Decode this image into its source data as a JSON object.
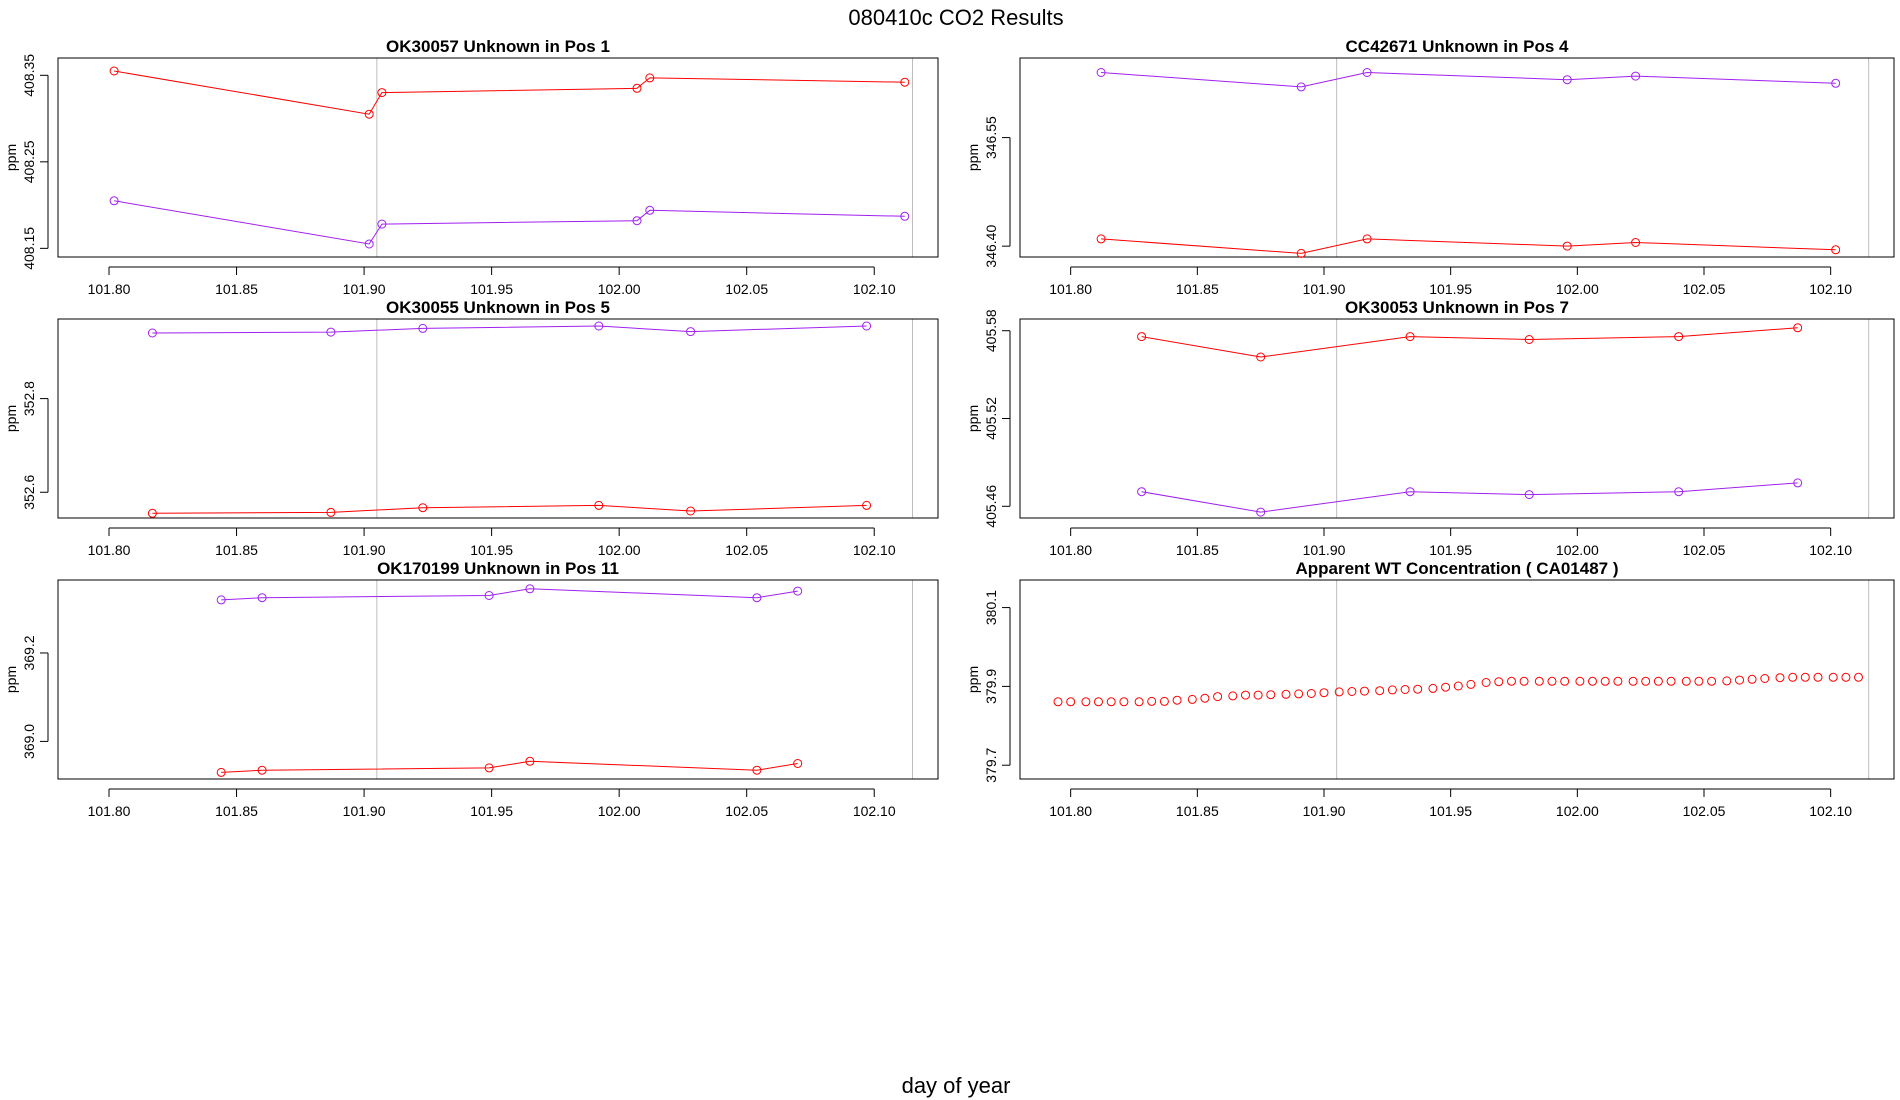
{
  "figure": {
    "title": "080410c  CO2 Results",
    "xlabel": "day of year"
  },
  "colors": {
    "red": "#ff0000",
    "purple": "#a020f0",
    "marker": "#bebebe",
    "axis": "#000000"
  },
  "chart_data": [
    {
      "type": "line",
      "title": "OK30057    Unknown in Pos 1",
      "xlabel": "day of year",
      "ylabel": "ppm",
      "xlim": [
        101.78,
        102.125
      ],
      "ylim": [
        408.14,
        408.37
      ],
      "xticks": [
        "101.80",
        "101.85",
        "101.90",
        "101.95",
        "102.00",
        "102.05",
        "102.10"
      ],
      "yticks": [
        "408.15",
        "408.25",
        "408.35"
      ],
      "vlines": [
        101.905,
        102.115
      ],
      "series": [
        {
          "name": "red",
          "color": "#ff0000",
          "lines": true,
          "x": [
            101.802,
            101.902,
            101.907,
            102.007,
            102.012,
            102.112
          ],
          "y": [
            408.355,
            408.305,
            408.33,
            408.335,
            408.347,
            408.342
          ]
        },
        {
          "name": "purple",
          "color": "#a020f0",
          "lines": true,
          "x": [
            101.802,
            101.902,
            101.907,
            102.007,
            102.012,
            102.112
          ],
          "y": [
            408.205,
            408.155,
            408.178,
            408.182,
            408.194,
            408.187
          ]
        }
      ]
    },
    {
      "type": "line",
      "title": "CC42671    Unknown in Pos 4",
      "xlabel": "day of year",
      "ylabel": "ppm",
      "xlim": [
        101.78,
        102.125
      ],
      "ylim": [
        346.385,
        346.66
      ],
      "xticks": [
        "101.80",
        "101.85",
        "101.90",
        "101.95",
        "102.00",
        "102.05",
        "102.10"
      ],
      "yticks": [
        "346.40",
        "346.55"
      ],
      "vlines": [
        101.905,
        102.115
      ],
      "series": [
        {
          "name": "purple",
          "color": "#a020f0",
          "lines": true,
          "x": [
            101.812,
            101.891,
            101.917,
            101.996,
            102.023,
            102.102
          ],
          "y": [
            346.64,
            346.62,
            346.64,
            346.63,
            346.635,
            346.625
          ]
        },
        {
          "name": "red",
          "color": "#ff0000",
          "lines": true,
          "x": [
            101.812,
            101.891,
            101.917,
            101.996,
            102.023,
            102.102
          ],
          "y": [
            346.41,
            346.39,
            346.41,
            346.4,
            346.405,
            346.395
          ]
        }
      ]
    },
    {
      "type": "line",
      "title": "OK30055    Unknown in Pos 5",
      "xlabel": "day of year",
      "ylabel": "ppm",
      "xlim": [
        101.78,
        102.125
      ],
      "ylim": [
        352.545,
        352.97
      ],
      "xticks": [
        "101.80",
        "101.85",
        "101.90",
        "101.95",
        "102.00",
        "102.05",
        "102.10"
      ],
      "yticks": [
        "352.6",
        "352.8"
      ],
      "vlines": [
        101.905,
        102.115
      ],
      "series": [
        {
          "name": "purple",
          "color": "#a020f0",
          "lines": true,
          "x": [
            101.817,
            101.887,
            101.923,
            101.992,
            102.028,
            102.097
          ],
          "y": [
            352.94,
            352.942,
            352.95,
            352.955,
            352.943,
            352.955
          ]
        },
        {
          "name": "red",
          "color": "#ff0000",
          "lines": true,
          "x": [
            101.817,
            101.887,
            101.923,
            101.992,
            102.028,
            102.097
          ],
          "y": [
            352.555,
            352.557,
            352.567,
            352.572,
            352.56,
            352.572
          ]
        }
      ]
    },
    {
      "type": "line",
      "title": "OK30053    Unknown in Pos 7",
      "xlabel": "day of year",
      "ylabel": "ppm",
      "xlim": [
        101.78,
        102.125
      ],
      "ylim": [
        405.452,
        405.588
      ],
      "xticks": [
        "101.80",
        "101.85",
        "101.90",
        "101.95",
        "102.00",
        "102.05",
        "102.10"
      ],
      "yticks": [
        "405.46",
        "405.52",
        "405.58"
      ],
      "vlines": [
        101.905,
        102.115
      ],
      "series": [
        {
          "name": "red",
          "color": "#ff0000",
          "lines": true,
          "x": [
            101.828,
            101.875,
            101.934,
            101.981,
            102.04,
            102.087
          ],
          "y": [
            405.576,
            405.562,
            405.576,
            405.574,
            405.576,
            405.582
          ]
        },
        {
          "name": "purple",
          "color": "#a020f0",
          "lines": true,
          "x": [
            101.828,
            101.875,
            101.934,
            101.981,
            102.04,
            102.087
          ],
          "y": [
            405.47,
            405.456,
            405.47,
            405.468,
            405.47,
            405.476
          ]
        }
      ]
    },
    {
      "type": "line",
      "title": "OK170199    Unknown in Pos 11",
      "xlabel": "day of year",
      "ylabel": "ppm",
      "xlim": [
        101.78,
        102.125
      ],
      "ylim": [
        368.915,
        369.365
      ],
      "xticks": [
        "101.80",
        "101.85",
        "101.90",
        "101.95",
        "102.00",
        "102.05",
        "102.10"
      ],
      "yticks": [
        "369.0",
        "369.2"
      ],
      "vlines": [
        101.905,
        102.115
      ],
      "series": [
        {
          "name": "purple",
          "color": "#a020f0",
          "lines": true,
          "x": [
            101.844,
            101.86,
            101.949,
            101.965,
            102.054,
            102.07
          ],
          "y": [
            369.32,
            369.325,
            369.33,
            369.345,
            369.325,
            369.34
          ]
        },
        {
          "name": "red",
          "color": "#ff0000",
          "lines": true,
          "x": [
            101.844,
            101.86,
            101.949,
            101.965,
            102.054,
            102.07
          ],
          "y": [
            368.93,
            368.935,
            368.94,
            368.955,
            368.935,
            368.95
          ]
        }
      ]
    },
    {
      "type": "scatter",
      "title": "Apparent WT Concentration ( CA01487 )",
      "xlabel": "day of year",
      "ylabel": "ppm",
      "xlim": [
        101.78,
        102.125
      ],
      "ylim": [
        379.665,
        380.17
      ],
      "xticks": [
        "101.80",
        "101.85",
        "101.90",
        "101.95",
        "102.00",
        "102.05",
        "102.10"
      ],
      "yticks": [
        "379.7",
        "379.9",
        "380.1"
      ],
      "vlines": [
        101.905,
        102.115
      ],
      "series": [
        {
          "name": "red",
          "color": "#ff0000",
          "lines": false,
          "x": [
            101.795,
            101.8,
            101.806,
            101.811,
            101.816,
            101.821,
            101.827,
            101.832,
            101.837,
            101.842,
            101.848,
            101.853,
            101.858,
            101.864,
            101.869,
            101.874,
            101.879,
            101.885,
            101.89,
            101.895,
            101.9,
            101.906,
            101.911,
            101.916,
            101.922,
            101.927,
            101.932,
            101.937,
            101.943,
            101.948,
            101.953,
            101.958,
            101.964,
            101.969,
            101.974,
            101.979,
            101.985,
            101.99,
            101.995,
            102.001,
            102.006,
            102.011,
            102.016,
            102.022,
            102.027,
            102.032,
            102.037,
            102.043,
            102.048,
            102.053,
            102.059,
            102.064,
            102.069,
            102.074,
            102.08,
            102.085,
            102.09,
            102.095,
            102.101,
            102.106,
            102.111
          ],
          "y": [
            379.861,
            379.861,
            379.861,
            379.861,
            379.861,
            379.861,
            379.861,
            379.862,
            379.862,
            379.865,
            379.867,
            379.87,
            379.874,
            379.876,
            379.878,
            379.878,
            379.879,
            379.88,
            379.881,
            379.882,
            379.884,
            379.886,
            379.887,
            379.888,
            379.889,
            379.891,
            379.892,
            379.893,
            379.895,
            379.898,
            379.901,
            379.905,
            379.91,
            379.912,
            379.913,
            379.913,
            379.913,
            379.913,
            379.913,
            379.913,
            379.913,
            379.913,
            379.913,
            379.913,
            379.913,
            379.913,
            379.913,
            379.913,
            379.913,
            379.913,
            379.914,
            379.916,
            379.918,
            379.92,
            379.922,
            379.923,
            379.923,
            379.923,
            379.923,
            379.923,
            379.923
          ]
        }
      ]
    }
  ]
}
